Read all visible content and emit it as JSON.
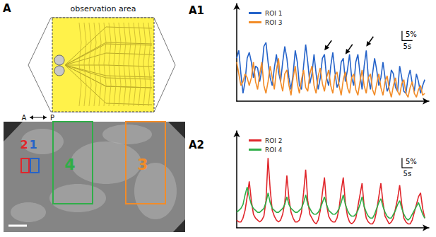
{
  "panel_label": "A",
  "schematic": {
    "title": "observation area",
    "axis_left": "A",
    "axis_right": "P"
  },
  "image": {
    "rois": [
      {
        "label": "1",
        "color": "#2563c9"
      },
      {
        "label": "2",
        "color": "#e0262b"
      },
      {
        "label": "3",
        "color": "#f28c28"
      },
      {
        "label": "4",
        "color": "#2fae48"
      }
    ]
  },
  "chart_data": [
    {
      "type": "line",
      "title": "A1",
      "tick_labels": false,
      "legend": "upper left",
      "xlim": [
        0,
        92
      ],
      "ylim": [
        0,
        50
      ],
      "x": [
        0,
        1,
        2,
        3,
        4,
        5,
        6,
        7,
        8,
        9,
        10,
        11,
        12,
        13,
        14,
        15,
        16,
        17,
        18,
        19,
        20,
        21,
        22,
        23,
        24,
        25,
        26,
        27,
        28,
        29,
        30,
        31,
        32,
        33,
        34,
        35,
        36,
        37,
        38,
        39,
        40,
        41,
        42,
        43,
        44,
        45,
        46,
        47,
        48,
        49,
        50,
        51,
        52,
        53,
        54,
        55,
        56,
        57,
        58,
        59,
        60,
        61,
        62,
        63,
        64,
        65,
        66,
        67,
        68,
        69,
        70,
        71,
        72,
        73,
        74,
        75,
        76,
        77,
        78,
        79,
        80,
        81,
        82,
        83,
        84,
        85,
        86,
        87,
        88,
        89,
        90
      ],
      "series": [
        {
          "name": "ROI 1",
          "color": "#2563c9",
          "values": [
            22,
            26,
            14,
            4,
            10,
            22,
            25,
            20,
            12,
            18,
            17,
            10,
            16,
            28,
            30,
            20,
            12,
            8,
            17,
            24,
            15,
            10,
            20,
            28,
            22,
            12,
            6,
            14,
            26,
            20,
            8,
            6,
            18,
            29,
            20,
            9,
            14,
            24,
            14,
            6,
            12,
            22,
            24,
            12,
            8,
            18,
            25,
            15,
            7,
            10,
            20,
            22,
            10,
            16,
            24,
            12,
            8,
            20,
            24,
            14,
            6,
            18,
            26,
            12,
            6,
            14,
            22,
            16,
            8,
            12,
            20,
            12,
            5,
            8,
            16,
            14,
            7,
            5,
            18,
            12,
            5,
            4,
            12,
            16,
            9,
            5,
            14,
            10,
            4,
            8,
            11
          ]
        },
        {
          "name": "ROI 3",
          "color": "#f28c28",
          "values": [
            20,
            14,
            8,
            10,
            14,
            12,
            8,
            12,
            20,
            10,
            6,
            14,
            20,
            8,
            4,
            10,
            18,
            12,
            6,
            16,
            22,
            10,
            5,
            14,
            16,
            8,
            3,
            12,
            18,
            9,
            4,
            11,
            16,
            7,
            5,
            14,
            18,
            8,
            4,
            13,
            17,
            9,
            5,
            12,
            16,
            8,
            4,
            13,
            15,
            8,
            3,
            11,
            15,
            7,
            4,
            12,
            14,
            6,
            3,
            10,
            16,
            8,
            4,
            12,
            14,
            6,
            3,
            9,
            14,
            7,
            3,
            10,
            13,
            6,
            2,
            8,
            12,
            5,
            3,
            9,
            11,
            4,
            2,
            7,
            10,
            4,
            2,
            6,
            8,
            3,
            4
          ]
        }
      ],
      "scale_bar": {
        "x": 5,
        "x_label": "5s",
        "y": 5,
        "y_label": "5%"
      },
      "arrows": [
        {
          "x": 42,
          "y": 26
        },
        {
          "x": 52,
          "y": 24
        },
        {
          "x": 62,
          "y": 28
        }
      ]
    },
    {
      "type": "line",
      "title": "A2",
      "tick_labels": false,
      "legend": "upper left",
      "xlim": [
        0,
        92
      ],
      "ylim": [
        0,
        50
      ],
      "x": [
        0,
        1,
        2,
        3,
        4,
        5,
        6,
        7,
        8,
        9,
        10,
        11,
        12,
        13,
        14,
        15,
        16,
        17,
        18,
        19,
        20,
        21,
        22,
        23,
        24,
        25,
        26,
        27,
        28,
        29,
        30,
        31,
        32,
        33,
        34,
        35,
        36,
        37,
        38,
        39,
        40,
        41,
        42,
        43,
        44,
        45,
        46,
        47,
        48,
        49,
        50,
        51,
        52,
        53,
        54,
        55,
        56,
        57,
        58,
        59,
        60,
        61,
        62,
        63,
        64,
        65,
        66,
        67,
        68,
        69,
        70,
        71,
        72,
        73,
        74,
        75,
        76,
        77,
        78,
        79,
        80,
        81,
        82,
        83,
        84,
        85,
        86,
        87,
        88,
        89,
        90
      ],
      "series": [
        {
          "name": "ROI 2",
          "color": "#e0262b",
          "values": [
            4,
            3,
            3,
            5,
            9,
            16,
            24,
            14,
            7,
            5,
            4,
            3,
            4,
            6,
            14,
            36,
            20,
            9,
            6,
            4,
            3,
            4,
            7,
            13,
            27,
            15,
            8,
            5,
            3,
            3,
            4,
            8,
            18,
            30,
            14,
            7,
            5,
            3,
            2,
            4,
            9,
            18,
            26,
            12,
            6,
            4,
            3,
            3,
            5,
            10,
            19,
            26,
            13,
            6,
            3,
            2,
            3,
            5,
            11,
            17,
            23,
            11,
            5,
            3,
            2,
            2,
            4,
            9,
            16,
            23,
            13,
            6,
            4,
            2,
            3,
            5,
            10,
            15,
            22,
            12,
            5,
            3,
            2,
            2,
            4,
            8,
            12,
            16,
            18,
            10,
            5
          ]
        },
        {
          "name": "ROI 4",
          "color": "#2fae48",
          "values": [
            8,
            9,
            10,
            12,
            17,
            21,
            16,
            12,
            10,
            9,
            8,
            8,
            9,
            10,
            13,
            18,
            13,
            10,
            9,
            8,
            8,
            9,
            10,
            12,
            16,
            12,
            10,
            9,
            8,
            8,
            9,
            10,
            13,
            17,
            12,
            10,
            8,
            7,
            7,
            8,
            10,
            13,
            16,
            12,
            9,
            8,
            7,
            7,
            8,
            10,
            13,
            17,
            12,
            9,
            7,
            6,
            6,
            7,
            9,
            12,
            16,
            11,
            8,
            6,
            5,
            5,
            7,
            10,
            13,
            15,
            11,
            8,
            6,
            5,
            5,
            7,
            9,
            12,
            14,
            10,
            7,
            5,
            4,
            5,
            7,
            9,
            11,
            13,
            10,
            7,
            5
          ]
        }
      ],
      "scale_bar": {
        "x": 5,
        "x_label": "5s",
        "y": 5,
        "y_label": "5%"
      }
    }
  ]
}
